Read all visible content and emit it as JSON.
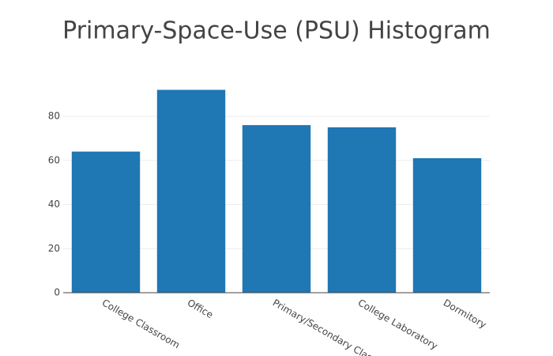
{
  "chart_data": {
    "type": "bar",
    "title": "Primary-Space-Use (PSU) Histogram",
    "categories": [
      "College Classroom",
      "Office",
      "Primary/Secondary Clas",
      "College Laboratory",
      "Dormitory"
    ],
    "values": [
      64,
      92,
      76,
      75,
      61
    ],
    "color": "#1f77b4",
    "ylim": [
      0,
      96.8
    ],
    "yticks": [
      0,
      20,
      40,
      60,
      80
    ],
    "grid": true
  }
}
